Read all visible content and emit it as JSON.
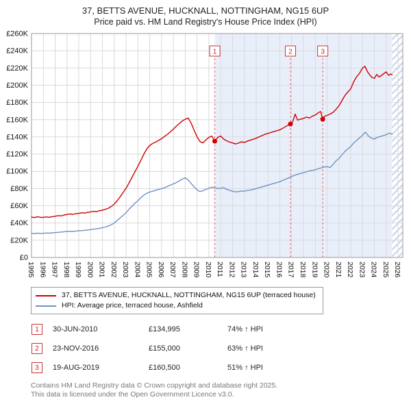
{
  "title": {
    "line1": "37, BETTS AVENUE, HUCKNALL, NOTTINGHAM, NG15 6UP",
    "line2": "Price paid vs. HM Land Registry's House Price Index (HPI)"
  },
  "legend": {
    "items": [
      {
        "label": "37, BETTS AVENUE, HUCKNALL, NOTTINGHAM, NG15 6UP (terraced house)",
        "color": "#cc0000"
      },
      {
        "label": "HPI: Average price, terraced house, Ashfield",
        "color": "#6d92c0"
      }
    ]
  },
  "footer": {
    "line1": "Contains HM Land Registry data © Crown copyright and database right 2025.",
    "line2": "This data is licensed under the Open Government Licence v3.0."
  },
  "chart_data": {
    "type": "line",
    "title": "37, BETTS AVENUE, HUCKNALL, NOTTINGHAM, NG15 6UP — Price paid vs. HPI",
    "xlabel": "Year",
    "ylabel": "Price",
    "x_range": [
      1995,
      2026.4
    ],
    "y_range": [
      0,
      260000
    ],
    "grid": true,
    "legend_position": "bottom",
    "y_tick_labels": [
      "£0",
      "£20K",
      "£40K",
      "£60K",
      "£80K",
      "£100K",
      "£120K",
      "£140K",
      "£160K",
      "£180K",
      "£200K",
      "£220K",
      "£240K",
      "£260K"
    ],
    "x_ticks": [
      1995,
      1996,
      1997,
      1998,
      1999,
      2000,
      2001,
      2002,
      2003,
      2004,
      2005,
      2006,
      2007,
      2008,
      2009,
      2010,
      2011,
      2012,
      2013,
      2014,
      2015,
      2016,
      2017,
      2018,
      2019,
      2020,
      2021,
      2022,
      2023,
      2024,
      2025,
      2026
    ],
    "shaded_region": {
      "start": 2010.5,
      "end": 2025.5
    },
    "hatched_region": {
      "start": 2025.5,
      "end": 2026.4
    },
    "colors": {
      "red": "#cc0000",
      "blue": "#6d92c0",
      "shade": "#e9effa",
      "grid": "#d9d9d9",
      "hatch": "#c5d3e8",
      "dash": "#e06666",
      "border": "#999999"
    },
    "sales": [
      {
        "label": "1",
        "date": "30-JUN-2010",
        "price": "£134,995",
        "price_value": 134995,
        "year": 2010.5,
        "hpi_change": "74% ↑ HPI"
      },
      {
        "label": "2",
        "date": "23-NOV-2016",
        "price": "£155,000",
        "price_value": 155000,
        "year": 2016.9,
        "hpi_change": "63% ↑ HPI"
      },
      {
        "label": "3",
        "date": "19-AUG-2019",
        "price": "£160,500",
        "price_value": 160500,
        "year": 2019.63,
        "hpi_change": "51% ↑ HPI"
      }
    ],
    "series": [
      {
        "name": "37, BETTS AVENUE, HUCKNALL, NOTTINGHAM, NG15 6UP (terraced house)",
        "color": "#cc0000",
        "points": [
          [
            1995,
            47000
          ],
          [
            1995.25,
            46300
          ],
          [
            1995.5,
            47400
          ],
          [
            1995.75,
            46600
          ],
          [
            1996,
            46500
          ],
          [
            1996.25,
            47100
          ],
          [
            1996.5,
            46700
          ],
          [
            1996.75,
            47400
          ],
          [
            1997,
            47900
          ],
          [
            1997.25,
            48600
          ],
          [
            1997.5,
            48300
          ],
          [
            1997.75,
            49300
          ],
          [
            1998,
            49900
          ],
          [
            1998.25,
            50600
          ],
          [
            1998.5,
            50100
          ],
          [
            1998.75,
            50900
          ],
          [
            1999,
            51100
          ],
          [
            1999.25,
            51900
          ],
          [
            1999.5,
            51500
          ],
          [
            1999.75,
            52400
          ],
          [
            2000,
            52900
          ],
          [
            2000.25,
            53600
          ],
          [
            2000.5,
            53300
          ],
          [
            2000.75,
            54300
          ],
          [
            2001,
            54900
          ],
          [
            2001.25,
            55900
          ],
          [
            2001.5,
            57200
          ],
          [
            2001.75,
            59200
          ],
          [
            2002,
            62000
          ],
          [
            2002.25,
            66000
          ],
          [
            2002.5,
            70500
          ],
          [
            2002.75,
            75500
          ],
          [
            2003,
            80500
          ],
          [
            2003.25,
            86500
          ],
          [
            2003.5,
            93000
          ],
          [
            2003.75,
            99500
          ],
          [
            2004,
            106000
          ],
          [
            2004.25,
            113000
          ],
          [
            2004.5,
            120000
          ],
          [
            2004.75,
            126000
          ],
          [
            2005,
            130000
          ],
          [
            2005.25,
            132500
          ],
          [
            2005.5,
            134000
          ],
          [
            2005.75,
            136000
          ],
          [
            2006,
            138000
          ],
          [
            2006.25,
            140500
          ],
          [
            2006.5,
            143000
          ],
          [
            2006.75,
            146000
          ],
          [
            2007,
            149000
          ],
          [
            2007.25,
            152500
          ],
          [
            2007.5,
            155500
          ],
          [
            2007.75,
            158500
          ],
          [
            2008,
            160500
          ],
          [
            2008.25,
            162000
          ],
          [
            2008.5,
            156000
          ],
          [
            2008.75,
            148000
          ],
          [
            2009,
            140000
          ],
          [
            2009.25,
            134500
          ],
          [
            2009.5,
            133000
          ],
          [
            2009.75,
            136500
          ],
          [
            2010,
            139500
          ],
          [
            2010.25,
            141000
          ],
          [
            2010.5,
            134995
          ],
          [
            2010.75,
            139500
          ],
          [
            2011,
            141000
          ],
          [
            2011.25,
            137500
          ],
          [
            2011.5,
            135500
          ],
          [
            2011.75,
            134000
          ],
          [
            2012,
            133000
          ],
          [
            2012.25,
            131800
          ],
          [
            2012.5,
            132800
          ],
          [
            2012.75,
            134200
          ],
          [
            2013,
            133600
          ],
          [
            2013.25,
            135000
          ],
          [
            2013.5,
            136200
          ],
          [
            2013.75,
            137200
          ],
          [
            2014,
            138500
          ],
          [
            2014.25,
            140000
          ],
          [
            2014.5,
            141500
          ],
          [
            2014.75,
            143000
          ],
          [
            2015,
            144000
          ],
          [
            2015.25,
            145200
          ],
          [
            2015.5,
            146200
          ],
          [
            2015.75,
            147200
          ],
          [
            2016,
            148200
          ],
          [
            2016.25,
            150000
          ],
          [
            2016.5,
            152000
          ],
          [
            2016.75,
            154000
          ],
          [
            2016.9,
            155000
          ],
          [
            2017.1,
            158000
          ],
          [
            2017.3,
            166500
          ],
          [
            2017.5,
            159500
          ],
          [
            2017.75,
            160500
          ],
          [
            2018,
            161500
          ],
          [
            2018.25,
            163000
          ],
          [
            2018.5,
            162000
          ],
          [
            2018.75,
            164000
          ],
          [
            2019,
            165500
          ],
          [
            2019.25,
            168000
          ],
          [
            2019.45,
            169500
          ],
          [
            2019.63,
            160500
          ],
          [
            2019.8,
            164000
          ],
          [
            2020,
            165000
          ],
          [
            2020.25,
            166500
          ],
          [
            2020.5,
            168500
          ],
          [
            2020.75,
            172000
          ],
          [
            2021,
            176000
          ],
          [
            2021.25,
            182000
          ],
          [
            2021.5,
            188000
          ],
          [
            2021.75,
            192000
          ],
          [
            2022,
            196000
          ],
          [
            2022.25,
            204000
          ],
          [
            2022.5,
            210000
          ],
          [
            2022.75,
            214000
          ],
          [
            2023,
            220000
          ],
          [
            2023.2,
            222000
          ],
          [
            2023.4,
            216000
          ],
          [
            2023.6,
            212000
          ],
          [
            2023.8,
            209000
          ],
          [
            2024,
            208000
          ],
          [
            2024.2,
            212500
          ],
          [
            2024.4,
            209500
          ],
          [
            2024.6,
            211500
          ],
          [
            2024.8,
            213500
          ],
          [
            2025,
            215500
          ],
          [
            2025.2,
            211500
          ],
          [
            2025.4,
            213000
          ],
          [
            2025.5,
            212000
          ]
        ]
      },
      {
        "name": "HPI: Average price, terraced house, Ashfield",
        "color": "#6d92c0",
        "points": [
          [
            1995,
            28000
          ],
          [
            1995.25,
            27700
          ],
          [
            1995.5,
            28200
          ],
          [
            1995.75,
            27900
          ],
          [
            1996,
            28100
          ],
          [
            1996.25,
            28400
          ],
          [
            1996.5,
            28200
          ],
          [
            1996.75,
            28600
          ],
          [
            1997,
            28900
          ],
          [
            1997.25,
            29200
          ],
          [
            1997.5,
            29500
          ],
          [
            1997.75,
            29900
          ],
          [
            1998,
            30100
          ],
          [
            1998.25,
            30400
          ],
          [
            1998.5,
            30200
          ],
          [
            1998.75,
            30700
          ],
          [
            1999,
            30900
          ],
          [
            1999.25,
            31200
          ],
          [
            1999.5,
            31600
          ],
          [
            1999.75,
            31900
          ],
          [
            2000,
            32400
          ],
          [
            2000.25,
            32900
          ],
          [
            2000.5,
            33300
          ],
          [
            2000.75,
            33900
          ],
          [
            2001,
            34500
          ],
          [
            2001.25,
            35400
          ],
          [
            2001.5,
            36500
          ],
          [
            2001.75,
            38000
          ],
          [
            2002,
            40000
          ],
          [
            2002.25,
            43000
          ],
          [
            2002.5,
            46000
          ],
          [
            2002.75,
            49000
          ],
          [
            2003,
            52000
          ],
          [
            2003.25,
            56000
          ],
          [
            2003.5,
            59500
          ],
          [
            2003.75,
            63000
          ],
          [
            2004,
            66000
          ],
          [
            2004.25,
            69500
          ],
          [
            2004.5,
            72500
          ],
          [
            2004.75,
            74500
          ],
          [
            2005,
            76000
          ],
          [
            2005.25,
            77000
          ],
          [
            2005.5,
            78000
          ],
          [
            2005.75,
            79000
          ],
          [
            2006,
            80000
          ],
          [
            2006.25,
            81000
          ],
          [
            2006.5,
            82500
          ],
          [
            2006.75,
            84000
          ],
          [
            2007,
            85500
          ],
          [
            2007.25,
            87000
          ],
          [
            2007.5,
            89000
          ],
          [
            2007.75,
            91000
          ],
          [
            2008,
            92500
          ],
          [
            2008.25,
            90000
          ],
          [
            2008.5,
            86000
          ],
          [
            2008.75,
            82000
          ],
          [
            2009,
            78500
          ],
          [
            2009.25,
            76500
          ],
          [
            2009.5,
            77500
          ],
          [
            2009.75,
            79000
          ],
          [
            2010,
            80500
          ],
          [
            2010.25,
            81500
          ],
          [
            2010.5,
            81000
          ],
          [
            2010.75,
            80000
          ],
          [
            2011,
            80500
          ],
          [
            2011.25,
            81000
          ],
          [
            2011.5,
            79000
          ],
          [
            2011.75,
            78000
          ],
          [
            2012,
            77000
          ],
          [
            2012.25,
            76200
          ],
          [
            2012.5,
            76500
          ],
          [
            2012.75,
            77200
          ],
          [
            2013,
            77000
          ],
          [
            2013.25,
            77800
          ],
          [
            2013.5,
            78200
          ],
          [
            2013.75,
            79000
          ],
          [
            2014,
            80000
          ],
          [
            2014.25,
            81000
          ],
          [
            2014.5,
            82000
          ],
          [
            2014.75,
            83000
          ],
          [
            2015,
            84000
          ],
          [
            2015.25,
            85000
          ],
          [
            2015.5,
            86000
          ],
          [
            2015.75,
            87000
          ],
          [
            2016,
            88000
          ],
          [
            2016.25,
            89500
          ],
          [
            2016.5,
            91000
          ],
          [
            2016.75,
            92500
          ],
          [
            2017,
            94000
          ],
          [
            2017.25,
            95500
          ],
          [
            2017.5,
            96500
          ],
          [
            2017.75,
            97500
          ],
          [
            2018,
            98500
          ],
          [
            2018.25,
            99500
          ],
          [
            2018.5,
            100500
          ],
          [
            2018.75,
            101000
          ],
          [
            2019,
            102000
          ],
          [
            2019.25,
            103000
          ],
          [
            2019.5,
            104000
          ],
          [
            2019.75,
            105000
          ],
          [
            2020,
            105500
          ],
          [
            2020.25,
            104500
          ],
          [
            2020.5,
            108000
          ],
          [
            2020.75,
            112000
          ],
          [
            2021,
            115000
          ],
          [
            2021.25,
            119000
          ],
          [
            2021.5,
            123000
          ],
          [
            2021.75,
            126000
          ],
          [
            2022,
            129000
          ],
          [
            2022.25,
            133000
          ],
          [
            2022.5,
            136000
          ],
          [
            2022.75,
            139000
          ],
          [
            2023,
            142000
          ],
          [
            2023.25,
            145500
          ],
          [
            2023.5,
            141000
          ],
          [
            2023.75,
            138500
          ],
          [
            2024,
            137500
          ],
          [
            2024.25,
            139500
          ],
          [
            2024.5,
            140500
          ],
          [
            2024.75,
            141500
          ],
          [
            2025,
            142500
          ],
          [
            2025.25,
            144500
          ],
          [
            2025.5,
            143000
          ]
        ]
      }
    ]
  }
}
